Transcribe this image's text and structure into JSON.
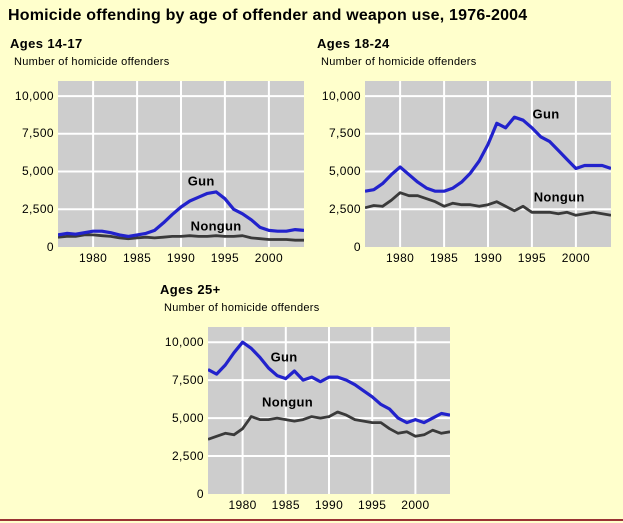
{
  "page": {
    "title": "Homicide offending by age of offender and weapon use, 1976-2004",
    "background_color": "#FFFFCC",
    "bottom_border_color": "#993333"
  },
  "colors": {
    "plot_background": "#CDCDCD",
    "gridline": "#FFFFFF",
    "gun_line": "#2222CC",
    "nongun_line": "#3A3A3A",
    "text": "#000000"
  },
  "chart_data": [
    {
      "type": "line",
      "title": "Ages 14-17",
      "ylabel": "Number of homicide offenders",
      "xlabel": "",
      "x_range": [
        1976,
        2004
      ],
      "y_range": [
        0,
        11000
      ],
      "grid": true,
      "legend": "inline-labels",
      "x": [
        1976,
        1977,
        1978,
        1979,
        1980,
        1981,
        1982,
        1983,
        1984,
        1985,
        1986,
        1987,
        1988,
        1989,
        1990,
        1991,
        1992,
        1993,
        1994,
        1995,
        1996,
        1997,
        1998,
        1999,
        2000,
        2001,
        2002,
        2003,
        2004
      ],
      "x_ticks": [
        {
          "value": 1980,
          "label": "1980"
        },
        {
          "value": 1985,
          "label": "1985"
        },
        {
          "value": 1990,
          "label": "1990"
        },
        {
          "value": 1995,
          "label": "1995"
        },
        {
          "value": 2000,
          "label": "2000"
        }
      ],
      "y_ticks": [
        {
          "value": 0,
          "label": "0"
        },
        {
          "value": 2500,
          "label": "2,500"
        },
        {
          "value": 5000,
          "label": "5,000"
        },
        {
          "value": 7500,
          "label": "7,500"
        },
        {
          "value": 10000,
          "label": "10,000"
        }
      ],
      "series": [
        {
          "name": "Nongun",
          "color": "#3A3A3A",
          "line_width": 2.8,
          "label_at": {
            "year": 1994.0,
            "value": 1400
          },
          "values": [
            650,
            700,
            700,
            800,
            800,
            750,
            700,
            600,
            550,
            600,
            650,
            600,
            650,
            700,
            700,
            750,
            700,
            700,
            750,
            700,
            700,
            750,
            600,
            550,
            500,
            500,
            500,
            450,
            450
          ]
        },
        {
          "name": "Gun",
          "color": "#2222CC",
          "line_width": 3.2,
          "label_at": {
            "year": 1992.3,
            "value": 4350
          },
          "values": [
            800,
            900,
            850,
            950,
            1050,
            1050,
            950,
            800,
            700,
            800,
            900,
            1100,
            1600,
            2150,
            2650,
            3050,
            3300,
            3550,
            3650,
            3200,
            2500,
            2200,
            1800,
            1300,
            1100,
            1050,
            1050,
            1150,
            1100
          ]
        }
      ]
    },
    {
      "type": "line",
      "title": "Ages 18-24",
      "ylabel": "Number of homicide offenders",
      "xlabel": "",
      "x_range": [
        1976,
        2004
      ],
      "y_range": [
        0,
        11000
      ],
      "grid": true,
      "legend": "inline-labels",
      "x": [
        1976,
        1977,
        1978,
        1979,
        1980,
        1981,
        1982,
        1983,
        1984,
        1985,
        1986,
        1987,
        1988,
        1989,
        1990,
        1991,
        1992,
        1993,
        1994,
        1995,
        1996,
        1997,
        1998,
        1999,
        2000,
        2001,
        2002,
        2003,
        2004
      ],
      "x_ticks": [
        {
          "value": 1980,
          "label": "1980"
        },
        {
          "value": 1985,
          "label": "1985"
        },
        {
          "value": 1990,
          "label": "1990"
        },
        {
          "value": 1995,
          "label": "1995"
        },
        {
          "value": 2000,
          "label": "2000"
        }
      ],
      "y_ticks": [
        {
          "value": 0,
          "label": "0"
        },
        {
          "value": 2500,
          "label": "2,500"
        },
        {
          "value": 5000,
          "label": "5,000"
        },
        {
          "value": 7500,
          "label": "7,500"
        },
        {
          "value": 10000,
          "label": "10,000"
        }
      ],
      "series": [
        {
          "name": "Nongun",
          "color": "#3A3A3A",
          "line_width": 2.8,
          "label_at": {
            "year": 1998.1,
            "value": 3300
          },
          "values": [
            2600,
            2750,
            2700,
            3100,
            3600,
            3400,
            3400,
            3200,
            3000,
            2700,
            2900,
            2800,
            2800,
            2700,
            2800,
            3000,
            2700,
            2400,
            2700,
            2300,
            2300,
            2300,
            2200,
            2300,
            2100,
            2200,
            2300,
            2200,
            2100
          ]
        },
        {
          "name": "Gun",
          "color": "#2222CC",
          "line_width": 3.2,
          "label_at": {
            "year": 1996.6,
            "value": 8800
          },
          "values": [
            3700,
            3800,
            4200,
            4800,
            5300,
            4800,
            4300,
            3900,
            3700,
            3700,
            3900,
            4300,
            4900,
            5700,
            6800,
            8200,
            7900,
            8600,
            8400,
            7900,
            7300,
            7000,
            6400,
            5800,
            5200,
            5400,
            5400,
            5400,
            5200
          ]
        }
      ]
    },
    {
      "type": "line",
      "title": "Ages 25+",
      "ylabel": "Number of homicide offenders",
      "xlabel": "",
      "x_range": [
        1976,
        2004
      ],
      "y_range": [
        0,
        11000
      ],
      "grid": true,
      "legend": "inline-labels",
      "x": [
        1976,
        1977,
        1978,
        1979,
        1980,
        1981,
        1982,
        1983,
        1984,
        1985,
        1986,
        1987,
        1988,
        1989,
        1990,
        1991,
        1992,
        1993,
        1994,
        1995,
        1996,
        1997,
        1998,
        1999,
        2000,
        2001,
        2002,
        2003,
        2004
      ],
      "x_ticks": [
        {
          "value": 1980,
          "label": "1980"
        },
        {
          "value": 1985,
          "label": "1985"
        },
        {
          "value": 1990,
          "label": "1990"
        },
        {
          "value": 1995,
          "label": "1995"
        },
        {
          "value": 2000,
          "label": "2000"
        }
      ],
      "y_ticks": [
        {
          "value": 0,
          "label": "0"
        },
        {
          "value": 2500,
          "label": "2,500"
        },
        {
          "value": 5000,
          "label": "5,000"
        },
        {
          "value": 7500,
          "label": "7,500"
        },
        {
          "value": 10000,
          "label": "10,000"
        }
      ],
      "series": [
        {
          "name": "Nongun",
          "color": "#3A3A3A",
          "line_width": 2.8,
          "label_at": {
            "year": 1985.2,
            "value": 6050
          },
          "values": [
            3600,
            3800,
            4000,
            3900,
            4300,
            5100,
            4900,
            4900,
            5000,
            4900,
            4800,
            4900,
            5100,
            5000,
            5100,
            5400,
            5200,
            4900,
            4800,
            4700,
            4700,
            4300,
            4000,
            4100,
            3800,
            3900,
            4200,
            4000,
            4100
          ]
        },
        {
          "name": "Gun",
          "color": "#2222CC",
          "line_width": 3.2,
          "label_at": {
            "year": 1984.8,
            "value": 9000
          },
          "values": [
            8200,
            7900,
            8500,
            9300,
            10000,
            9600,
            9000,
            8300,
            7800,
            7600,
            8100,
            7500,
            7700,
            7400,
            7700,
            7700,
            7500,
            7200,
            6800,
            6400,
            5900,
            5600,
            5000,
            4700,
            4900,
            4700,
            5000,
            5300,
            5200
          ]
        }
      ]
    }
  ]
}
